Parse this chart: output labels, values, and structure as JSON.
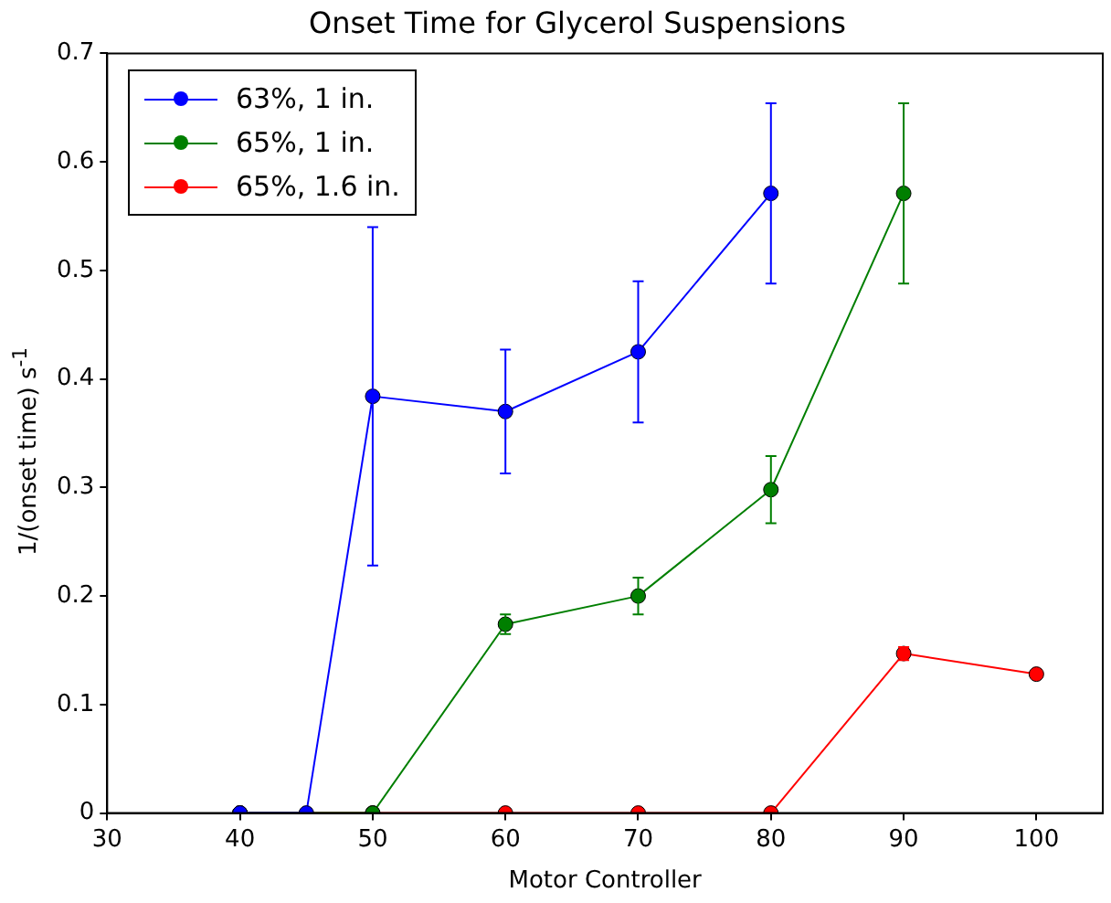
{
  "chart_data": {
    "type": "line",
    "title": "Onset Time for Glycerol Suspensions",
    "xlabel": "Motor Controller",
    "ylabel": "1/(onset time) s$^{-1}$",
    "xlim": [
      30,
      105
    ],
    "xticks": [
      30,
      40,
      50,
      60,
      70,
      80,
      90,
      100
    ],
    "ylim": [
      0,
      0.7
    ],
    "yticks": [
      0,
      0.1,
      0.2,
      0.3,
      0.4,
      0.5,
      0.6,
      0.7
    ],
    "marker": "circle",
    "legend": "top left",
    "grid": false,
    "series": [
      {
        "name": "63%, 1 in.",
        "color": "#0000ff",
        "x": [
          40,
          45,
          50,
          60,
          70,
          80
        ],
        "values": [
          0,
          0,
          0.384,
          0.37,
          0.425,
          0.571
        ],
        "errors": [
          null,
          null,
          0.156,
          0.057,
          0.065,
          0.083
        ]
      },
      {
        "name": "65%, 1 in.",
        "color": "#007f00",
        "x": [
          40,
          50,
          60,
          70,
          80,
          90
        ],
        "values": [
          0,
          0,
          0.174,
          0.2,
          0.298,
          0.571
        ],
        "errors": [
          null,
          null,
          0.009,
          0.017,
          0.031,
          0.083
        ]
      },
      {
        "name": "65%, 1.6 in.",
        "color": "#ff0000",
        "x": [
          40,
          50,
          60,
          70,
          80,
          90,
          100
        ],
        "values": [
          0,
          0,
          0,
          0,
          0,
          0.147,
          0.128
        ],
        "errors": [
          null,
          null,
          null,
          null,
          null,
          0.006,
          0.003
        ]
      }
    ]
  }
}
